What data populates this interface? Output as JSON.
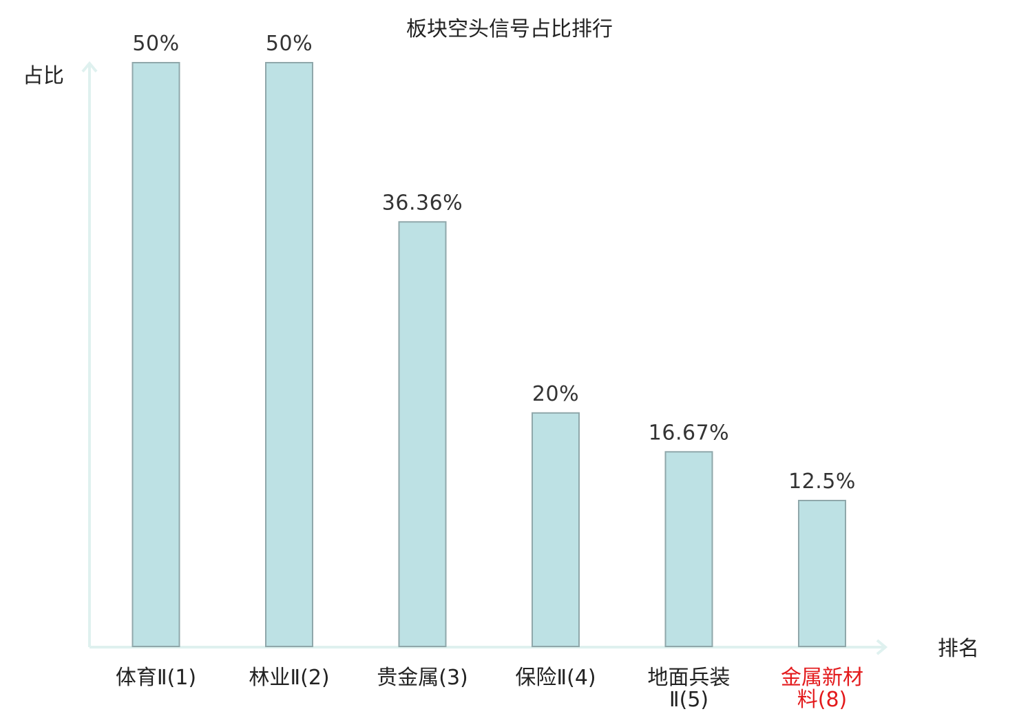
{
  "chart_data": {
    "type": "bar",
    "title": "板块空头信号占比排行",
    "xlabel": "排名",
    "ylabel": "占比",
    "categories": [
      {
        "lines": [
          "体育Ⅱ(1)"
        ],
        "highlight": false
      },
      {
        "lines": [
          "林业Ⅱ(2)"
        ],
        "highlight": false
      },
      {
        "lines": [
          "贵金属(3)"
        ],
        "highlight": false
      },
      {
        "lines": [
          "保险Ⅱ(4)"
        ],
        "highlight": false
      },
      {
        "lines": [
          "地面兵装",
          "Ⅱ(5)"
        ],
        "highlight": false
      },
      {
        "lines": [
          "金属新材",
          "料(8)"
        ],
        "highlight": true
      }
    ],
    "values": [
      50,
      50,
      36.36,
      20,
      16.67,
      12.5
    ],
    "value_labels": [
      "50%",
      "50%",
      "36.36%",
      "20%",
      "16.67%",
      "12.5%"
    ],
    "ylim": [
      0,
      50
    ],
    "grid": false,
    "legend": "none",
    "colors": {
      "bar_fill": "#bde1e4",
      "bar_stroke": "#8fa7aa",
      "axis": "#dff1ef",
      "highlight_text": "#e31a1c"
    }
  }
}
